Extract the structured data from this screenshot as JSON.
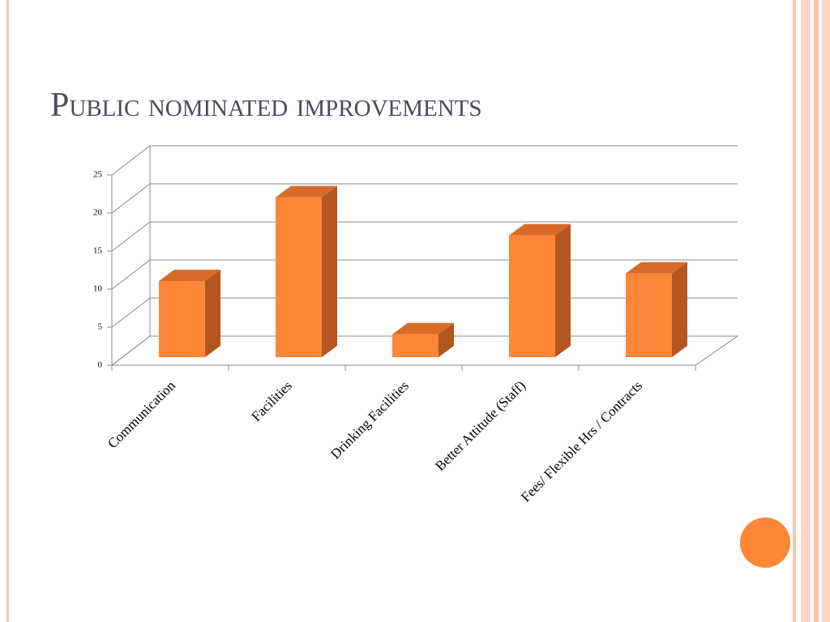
{
  "chart_data": {
    "type": "bar",
    "title": "Public nominated improvements",
    "categories": [
      "Communication",
      "Facilities",
      "Drinking Facilities",
      "Better Attitude (Staff)",
      "Fees/ Flexible Hrs / Contracts"
    ],
    "values": [
      10,
      21,
      3,
      16,
      11
    ],
    "color": "#fd8637",
    "ylim": [
      0,
      25
    ],
    "yticks": [
      0,
      5,
      10,
      15,
      20,
      25
    ],
    "grid": true
  }
}
